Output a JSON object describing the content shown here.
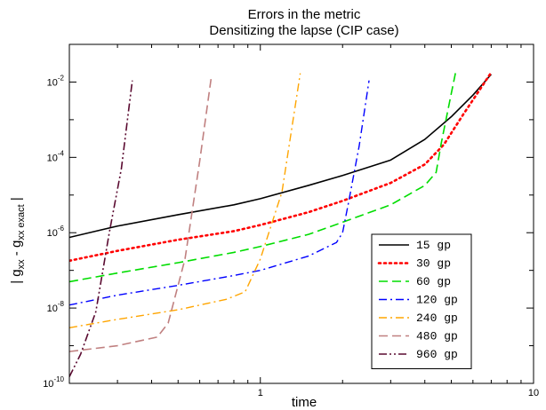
{
  "chart_data": {
    "type": "line",
    "title": "Errors in the metric",
    "subtitle": "Densitizing the lapse (CIP case)",
    "xlabel": "time",
    "ylabel": {
      "base": "| g",
      "sub1": "xx",
      "mid": " - g",
      "sub2": "xx exact",
      "end": " |"
    },
    "x_scale": "log",
    "y_scale": "log",
    "xlim": [
      0.2,
      10
    ],
    "ylim": [
      1e-10,
      0.1
    ],
    "x_ticks": [
      {
        "value": 1,
        "label": "1"
      },
      {
        "value": 10,
        "label": "10"
      }
    ],
    "y_ticks": [
      {
        "value": 1e-10,
        "base": "10",
        "exp": "-10"
      },
      {
        "value": 1e-08,
        "base": "10",
        "exp": "-8"
      },
      {
        "value": 1e-06,
        "base": "10",
        "exp": "-6"
      },
      {
        "value": 0.0001,
        "base": "10",
        "exp": "-4"
      },
      {
        "value": 0.01,
        "base": "10",
        "exp": "-2"
      }
    ],
    "legend_position": "lower-right",
    "series": [
      {
        "name": "15 gp",
        "color": "#000000",
        "dash": "solid",
        "points": [
          [
            0.2,
            7.5e-07
          ],
          [
            0.3,
            1.5e-06
          ],
          [
            0.5,
            3e-06
          ],
          [
            0.8,
            5.5e-06
          ],
          [
            1.0,
            8e-06
          ],
          [
            1.5,
            1.8e-05
          ],
          [
            2.0,
            3.3e-05
          ],
          [
            3.0,
            8.5e-05
          ],
          [
            4.0,
            0.0003
          ],
          [
            5.0,
            0.0012
          ],
          [
            6.0,
            0.0045
          ],
          [
            7.0,
            0.016
          ]
        ]
      },
      {
        "name": "30 gp",
        "color": "#ff0000",
        "dash": "dot",
        "points": [
          [
            0.2,
            1.8e-07
          ],
          [
            0.3,
            3.3e-07
          ],
          [
            0.5,
            6.5e-07
          ],
          [
            0.8,
            1.1e-06
          ],
          [
            1.0,
            1.6e-06
          ],
          [
            1.5,
            3.5e-06
          ],
          [
            2.0,
            7e-06
          ],
          [
            3.0,
            2.1e-05
          ],
          [
            4.0,
            6.5e-05
          ],
          [
            4.7,
            0.00022
          ],
          [
            5.5,
            0.0013
          ],
          [
            6.5,
            0.008
          ],
          [
            7.0,
            0.018
          ]
        ]
      },
      {
        "name": "60 gp",
        "color": "#00dd00",
        "dash": "dash",
        "points": [
          [
            0.2,
            5e-08
          ],
          [
            0.3,
            8.5e-08
          ],
          [
            0.5,
            1.6e-07
          ],
          [
            0.8,
            3e-07
          ],
          [
            1.0,
            4.3e-07
          ],
          [
            1.5,
            9e-07
          ],
          [
            2.0,
            1.9e-06
          ],
          [
            3.0,
            5.5e-06
          ],
          [
            4.0,
            1.8e-05
          ],
          [
            4.4,
            4e-05
          ],
          [
            4.6,
            0.00025
          ],
          [
            5.0,
            0.005
          ],
          [
            5.2,
            0.02
          ]
        ]
      },
      {
        "name": "120 gp",
        "color": "#0000ff",
        "dash": "dashdot",
        "points": [
          [
            0.2,
            1.2e-08
          ],
          [
            0.3,
            2.2e-08
          ],
          [
            0.5,
            4e-08
          ],
          [
            0.8,
            7.3e-08
          ],
          [
            1.0,
            1e-07
          ],
          [
            1.5,
            2.4e-07
          ],
          [
            1.9,
            5.5e-07
          ],
          [
            2.0,
            1e-06
          ],
          [
            2.1,
            6e-06
          ],
          [
            2.3,
            0.0002
          ],
          [
            2.5,
            0.011
          ]
        ]
      },
      {
        "name": "240 gp",
        "color": "#ffa500",
        "dash": "dashdot",
        "points": [
          [
            0.2,
            3e-09
          ],
          [
            0.3,
            5e-09
          ],
          [
            0.5,
            9e-09
          ],
          [
            0.75,
            1.7e-08
          ],
          [
            0.88,
            2.7e-08
          ],
          [
            1.0,
            2e-07
          ],
          [
            1.2,
            1.2e-05
          ],
          [
            1.4,
            0.017
          ]
        ]
      },
      {
        "name": "480 gp",
        "color": "#c08080",
        "dash": "dash",
        "points": [
          [
            0.2,
            7e-10
          ],
          [
            0.3,
            1e-09
          ],
          [
            0.42,
            1.7e-09
          ],
          [
            0.46,
            4e-09
          ],
          [
            0.53,
            2e-07
          ],
          [
            0.6,
            8e-05
          ],
          [
            0.66,
            0.012
          ]
        ]
      },
      {
        "name": "960 gp",
        "color": "#5a0a30",
        "dash": "dashdotdot",
        "points": [
          [
            0.2,
            1.5e-10
          ],
          [
            0.22,
            6e-10
          ],
          [
            0.25,
            8e-09
          ],
          [
            0.28,
            1e-06
          ],
          [
            0.31,
            5e-05
          ],
          [
            0.34,
            0.011
          ]
        ]
      }
    ]
  }
}
